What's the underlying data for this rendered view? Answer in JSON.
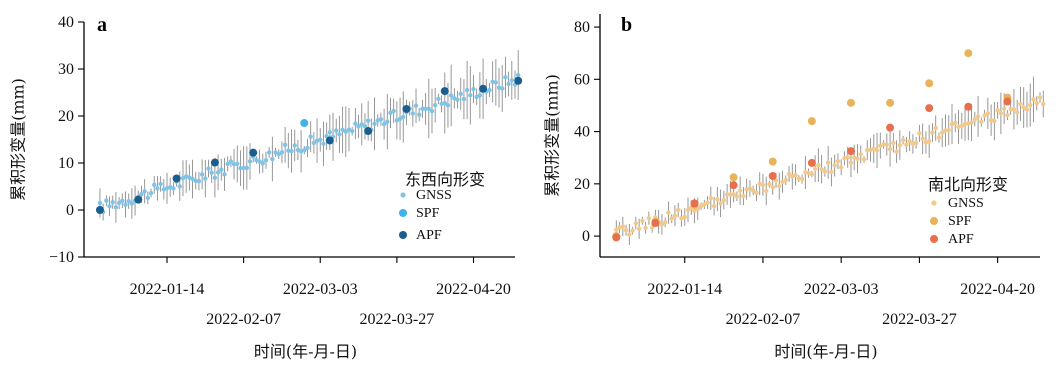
{
  "chart_data": [
    {
      "panel": "a",
      "type": "scatter",
      "ylabel": "累积形变量(mm)",
      "xlabel": "时间(年-月-日)",
      "ylim": [
        -10,
        40
      ],
      "yticks": [
        40,
        30,
        20,
        10,
        0,
        -10
      ],
      "ytick_labels": [
        "40",
        "30",
        "20",
        "10",
        "0",
        "−10"
      ],
      "xlim": [
        "2021-12-19",
        "2022-05-03"
      ],
      "xticks_top": [
        "2022-01-14",
        "2022-03-03",
        "2022-04-20"
      ],
      "xticks_bottom": [
        "2022-02-07",
        "2022-03-27"
      ],
      "legend": {
        "title": "东西向形变",
        "position": "right",
        "entries": [
          "GNSS",
          "SPF",
          "APF"
        ]
      },
      "colors": {
        "GNSS": "#7fc3e6",
        "SPF": "#3fb3ea",
        "APF": "#1a5e8f"
      },
      "series": [
        {
          "name": "SPF",
          "x": [
            "2022-02-26"
          ],
          "y": [
            18.5
          ]
        },
        {
          "name": "APF",
          "x": [
            "2021-12-24",
            "2022-01-05",
            "2022-01-17",
            "2022-01-29",
            "2022-02-10",
            "2022-03-06",
            "2022-03-18",
            "2022-03-30",
            "2022-04-11",
            "2022-04-23",
            "2022-05-04"
          ],
          "y": [
            0,
            2.2,
            6.7,
            10.1,
            12.2,
            14.8,
            16.8,
            21.5,
            25.3,
            25.8,
            27.5
          ]
        }
      ],
      "gnss_trend": {
        "x": [
          "2021-12-24",
          "2022-05-04"
        ],
        "y": [
          0.5,
          28
        ]
      }
    },
    {
      "panel": "b",
      "type": "scatter",
      "ylabel": "累积形变量(mm)",
      "xlabel": "时间(年-月-日)",
      "ylim": [
        -8,
        85
      ],
      "yticks": [
        80,
        60,
        40,
        20,
        0
      ],
      "ytick_labels": [
        "80",
        "60",
        "40",
        "20",
        "0"
      ],
      "xlim": [
        "2021-12-19",
        "2022-05-03"
      ],
      "xticks_top": [
        "2022-01-14",
        "2022-03-03",
        "2022-04-20"
      ],
      "xticks_bottom": [
        "2022-02-07",
        "2022-03-27"
      ],
      "legend": {
        "title": "南北向形变",
        "position": "right",
        "entries": [
          "GNSS",
          "SPF",
          "APF"
        ]
      },
      "colors": {
        "GNSS": "#f2c98a",
        "SPF": "#e8b35a",
        "APF": "#e86f4e"
      },
      "series": [
        {
          "name": "SPF",
          "x": [
            "2021-12-24",
            "2022-01-05",
            "2022-01-17",
            "2022-01-29",
            "2022-02-10",
            "2022-02-22",
            "2022-03-06",
            "2022-03-18",
            "2022-03-30",
            "2022-04-11",
            "2022-04-23"
          ],
          "y": [
            0,
            5.5,
            12,
            22.5,
            28.5,
            44,
            51,
            51,
            58.5,
            70,
            53
          ]
        },
        {
          "name": "APF",
          "x": [
            "2021-12-24",
            "2022-01-05",
            "2022-01-17",
            "2022-01-29",
            "2022-02-10",
            "2022-02-22",
            "2022-03-06",
            "2022-03-18",
            "2022-03-30",
            "2022-04-11",
            "2022-04-23"
          ],
          "y": [
            -0.5,
            5,
            12.5,
            19.5,
            23,
            28,
            32.5,
            41.5,
            49,
            49.5,
            51.5
          ]
        }
      ],
      "gnss_trend": {
        "x": [
          "2021-12-24",
          "2022-05-04"
        ],
        "y": [
          1,
          52
        ]
      }
    }
  ]
}
